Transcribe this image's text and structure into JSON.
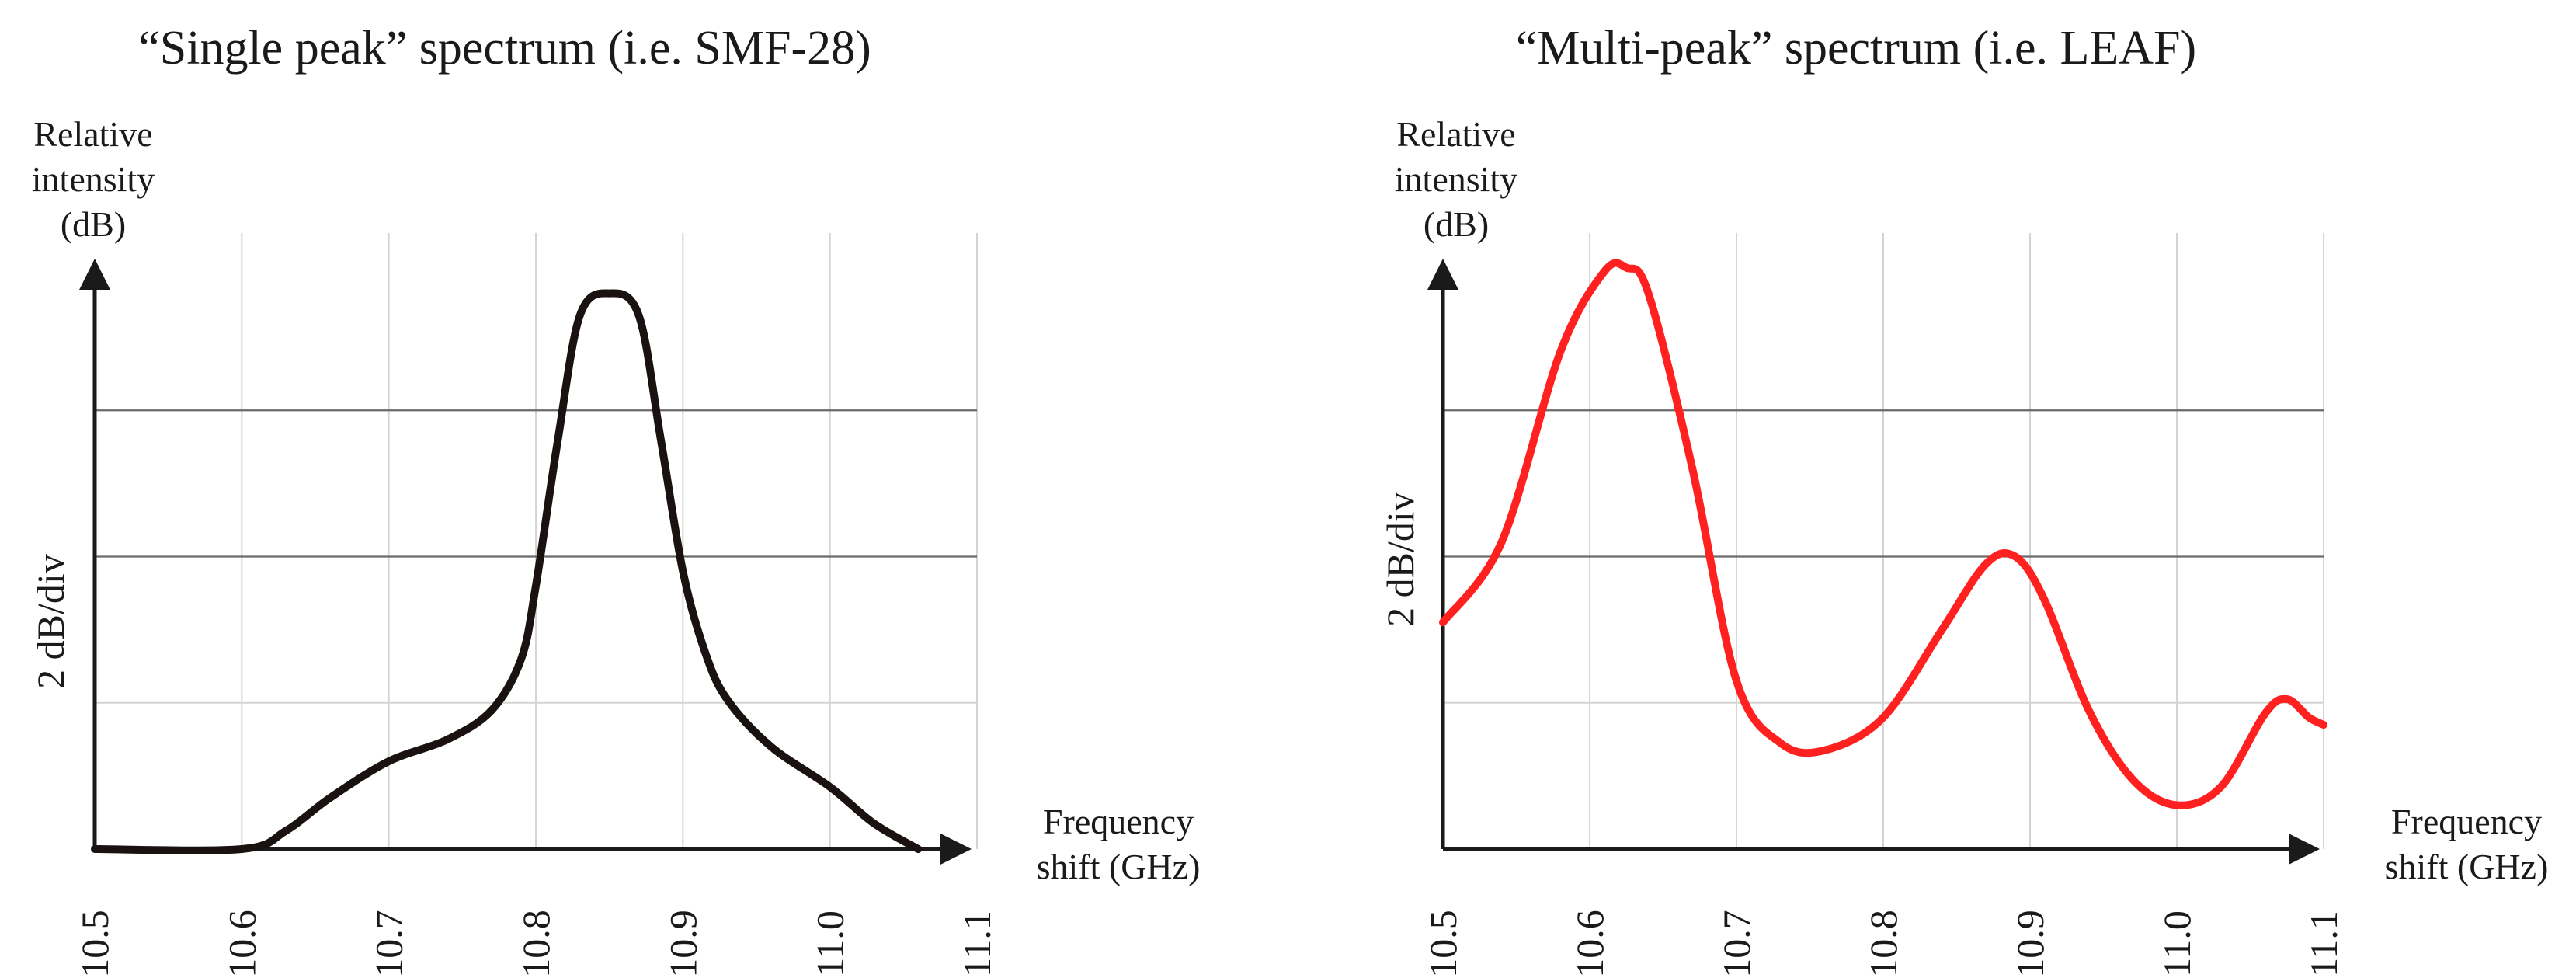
{
  "chart_data": [
    {
      "type": "line",
      "title": "“Single peak” spectrum (i.e. SMF-28)",
      "ylabel_lines": [
        "Relative",
        "intensity",
        "(dB)"
      ],
      "xlabel_lines": [
        "Frequency",
        "shift (GHz)"
      ],
      "div_label": "2 dB/div",
      "xlim": [
        10.5,
        11.1
      ],
      "ylim": [
        0,
        8
      ],
      "x_ticks": [
        "10.5",
        "10.6",
        "10.7",
        "10.8",
        "10.9",
        "11.0",
        "11.1"
      ],
      "x_tick_values": [
        10.5,
        10.6,
        10.7,
        10.8,
        10.9,
        11.0,
        11.1
      ],
      "line_color": "#1a1210",
      "series": [
        {
          "name": "SMF-28",
          "x": [
            10.5,
            10.6,
            10.63,
            10.66,
            10.7,
            10.74,
            10.77,
            10.79,
            10.8,
            10.815,
            10.83,
            10.85,
            10.87,
            10.885,
            10.9,
            10.915,
            10.93,
            10.96,
            11.0,
            11.03,
            11.06
          ],
          "y": [
            0,
            0,
            0.25,
            0.7,
            1.2,
            1.5,
            1.9,
            2.6,
            3.6,
            5.6,
            7.3,
            7.6,
            7.3,
            5.6,
            3.8,
            2.7,
            2.05,
            1.4,
            0.85,
            0.35,
            0
          ]
        }
      ]
    },
    {
      "type": "line",
      "title": "“Multi-peak” spectrum (i.e. LEAF)",
      "ylabel_lines": [
        "Relative",
        "intensity",
        "(dB)"
      ],
      "xlabel_lines": [
        "Frequency",
        "shift (GHz)"
      ],
      "div_label": "2 dB/div",
      "xlim": [
        10.5,
        11.1
      ],
      "ylim": [
        0,
        8
      ],
      "x_ticks": [
        "10.5",
        "10.6",
        "10.7",
        "10.8",
        "10.9",
        "11.0",
        "11.1"
      ],
      "x_tick_values": [
        10.5,
        10.6,
        10.7,
        10.8,
        10.9,
        11.0,
        11.1
      ],
      "line_color": "#ff2020",
      "series": [
        {
          "name": "LEAF",
          "x": [
            10.5,
            10.54,
            10.58,
            10.61,
            10.625,
            10.64,
            10.67,
            10.7,
            10.73,
            10.76,
            10.8,
            10.84,
            10.87,
            10.89,
            10.91,
            10.94,
            10.97,
            11.0,
            11.03,
            11.06,
            11.075,
            11.09,
            11.1
          ],
          "y": [
            3.1,
            4.2,
            6.8,
            7.9,
            7.95,
            7.6,
            5.2,
            2.3,
            1.45,
            1.35,
            1.8,
            3.0,
            3.9,
            4.0,
            3.4,
            1.9,
            0.95,
            0.6,
            0.85,
            1.85,
            2.05,
            1.8,
            1.7
          ]
        }
      ]
    }
  ]
}
